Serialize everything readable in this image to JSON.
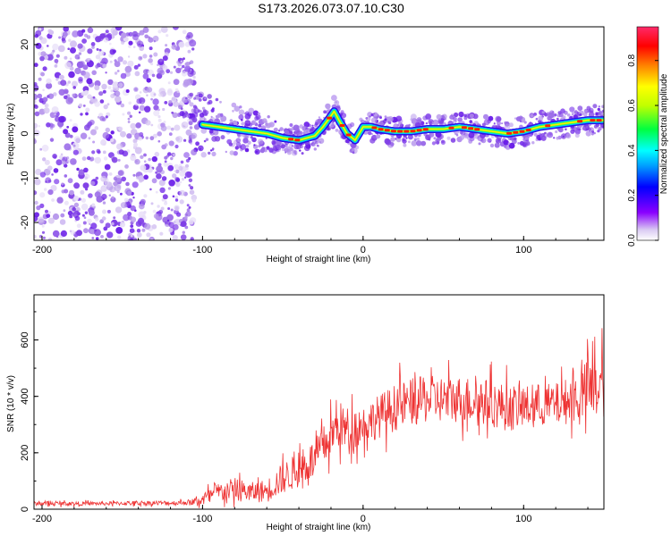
{
  "title": "S173.2026.073.07.10.C30",
  "chart_data": [
    {
      "type": "heatmap",
      "id": "spectrogram",
      "xlabel": "Height of straight line (km)",
      "ylabel": "Frequency (Hz)",
      "xlim": [
        -205,
        150
      ],
      "ylim": [
        -24,
        24
      ],
      "xticks": [
        -200,
        -100,
        0,
        100
      ],
      "xtick_labels": [
        "-200",
        "-100",
        "0",
        "100"
      ],
      "yticks": [
        -20,
        -10,
        0,
        10,
        20
      ],
      "ytick_labels": [
        "-20",
        "-10",
        "0",
        "10",
        "20"
      ],
      "colorbar": {
        "label": "Normalized spectral amplitude",
        "range": [
          0,
          0.95
        ],
        "ticks": [
          0.0,
          0.2,
          0.4,
          0.6,
          0.8
        ],
        "tick_labels": [
          "0.0",
          "0.2",
          "0.4",
          "0.6",
          "0.8"
        ]
      },
      "ridge": {
        "x": [
          -100,
          -80,
          -60,
          -50,
          -40,
          -30,
          -25,
          -20,
          -18,
          -15,
          -10,
          -5,
          0,
          5,
          10,
          20,
          30,
          40,
          50,
          60,
          70,
          80,
          90,
          100,
          110,
          120,
          130,
          140,
          150
        ],
        "y": [
          2,
          1,
          0,
          -1,
          -1.5,
          -0.5,
          1.5,
          4,
          5,
          3,
          0,
          -1.5,
          1.5,
          1.5,
          1,
          0.5,
          0.5,
          1,
          1,
          1.5,
          1,
          0.5,
          0,
          0.5,
          1.5,
          2,
          2.5,
          3,
          3
        ]
      }
    },
    {
      "type": "line",
      "id": "snr",
      "xlabel": "Height of straight line (km)",
      "ylabel": "SNR (10 * v/v)",
      "xlim": [
        -205,
        150
      ],
      "ylim": [
        0,
        760
      ],
      "xticks": [
        -200,
        -100,
        0,
        100
      ],
      "xtick_labels": [
        "-200",
        "-100",
        "0",
        "100"
      ],
      "yticks": [
        0,
        200,
        400,
        600
      ],
      "ytick_labels": [
        "0",
        "200",
        "400",
        "600"
      ],
      "color": "#ee3333",
      "series": [
        {
          "name": "SNR",
          "x": [
            -205,
            -180,
            -160,
            -140,
            -120,
            -105,
            -100,
            -90,
            -80,
            -70,
            -60,
            -50,
            -40,
            -30,
            -20,
            -15,
            -10,
            -5,
            0,
            10,
            20,
            30,
            40,
            50,
            60,
            70,
            80,
            90,
            100,
            110,
            120,
            130,
            140,
            150
          ],
          "mean": [
            20,
            20,
            20,
            22,
            22,
            25,
            35,
            60,
            70,
            60,
            65,
            110,
            140,
            180,
            260,
            300,
            280,
            290,
            300,
            330,
            360,
            380,
            390,
            390,
            390,
            385,
            375,
            360,
            360,
            370,
            370,
            390,
            420,
            440
          ],
          "spread": [
            10,
            10,
            10,
            12,
            12,
            15,
            35,
            50,
            60,
            50,
            60,
            80,
            90,
            100,
            110,
            120,
            120,
            110,
            100,
            110,
            120,
            120,
            120,
            120,
            120,
            120,
            120,
            120,
            110,
            110,
            110,
            120,
            160,
            180
          ]
        }
      ]
    }
  ]
}
